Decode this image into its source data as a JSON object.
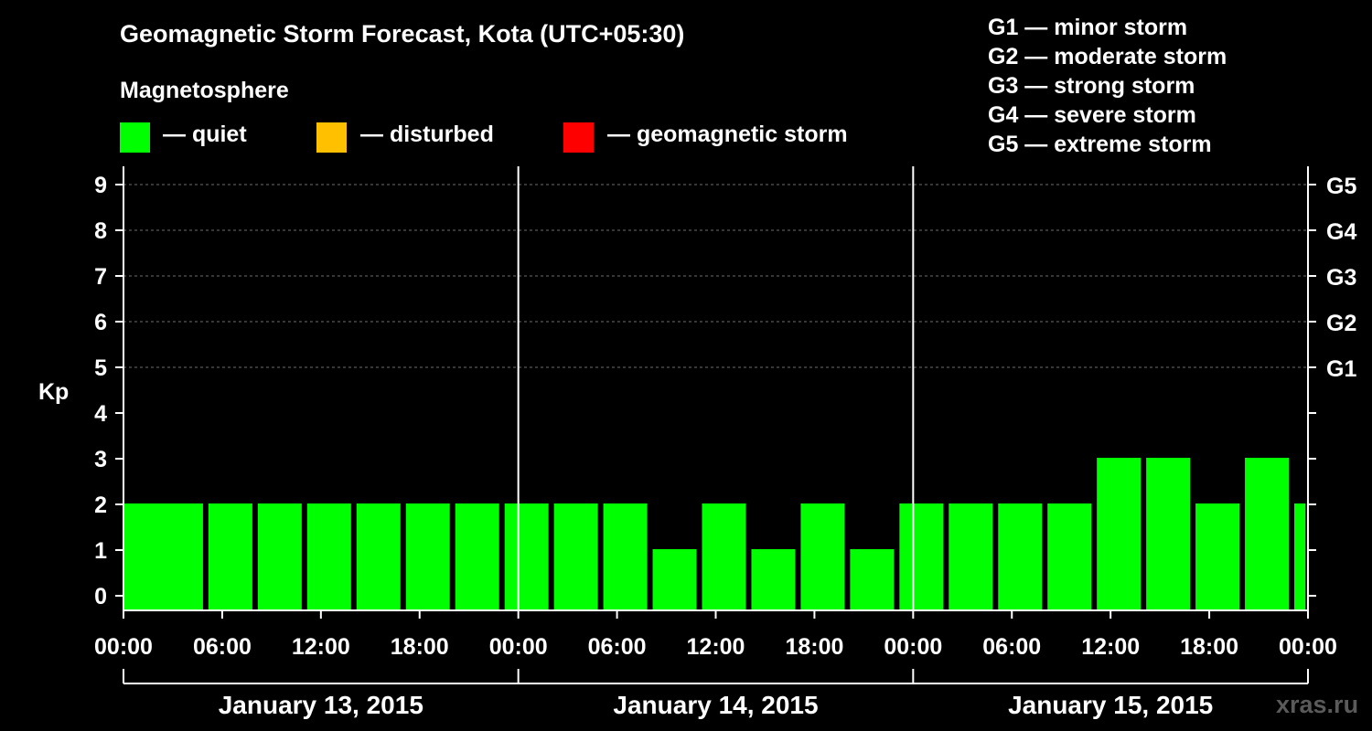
{
  "header": {
    "title": "Geomagnetic Storm Forecast, Kota (UTC+05:30)",
    "subtitle": "Magnetosphere"
  },
  "legend": [
    {
      "label": "— quiet",
      "color": "#00ff00"
    },
    {
      "label": "— disturbed",
      "color": "#ffc000"
    },
    {
      "label": "— geomagnetic storm",
      "color": "#ff0000"
    }
  ],
  "storm_scale": [
    "G1 — minor storm",
    "G2 — moderate storm",
    "G3 — strong storm",
    "G4 — severe storm",
    "G5 — extreme storm"
  ],
  "credit": "xras.ru",
  "chart_data": {
    "type": "bar",
    "ylabel": "Kp",
    "ylim": [
      0,
      9
    ],
    "yticks": [
      0,
      1,
      2,
      3,
      4,
      5,
      6,
      7,
      8,
      9
    ],
    "right_axis_labels": [
      {
        "kp": 5,
        "label": "G1"
      },
      {
        "kp": 6,
        "label": "G2"
      },
      {
        "kp": 7,
        "label": "G3"
      },
      {
        "kp": 8,
        "label": "G4"
      },
      {
        "kp": 9,
        "label": "G5"
      }
    ],
    "grid": "dashed horizontal at Kp 5–9",
    "x_range_hours": [
      0,
      72
    ],
    "xtick_labels": [
      "00:00",
      "06:00",
      "12:00",
      "18:00",
      "00:00",
      "06:00",
      "12:00",
      "18:00",
      "00:00",
      "06:00",
      "12:00",
      "18:00",
      "00:00"
    ],
    "days": [
      "January 13, 2015",
      "January 14, 2015",
      "January 15, 2015"
    ],
    "bars": [
      {
        "start": 0,
        "kp": 2
      },
      {
        "start": 2,
        "kp": 2
      },
      {
        "start": 5,
        "kp": 2
      },
      {
        "start": 8,
        "kp": 2
      },
      {
        "start": 11,
        "kp": 2
      },
      {
        "start": 14,
        "kp": 2
      },
      {
        "start": 17,
        "kp": 2
      },
      {
        "start": 20,
        "kp": 2
      },
      {
        "start": 23,
        "kp": 2
      },
      {
        "start": 26,
        "kp": 2
      },
      {
        "start": 29,
        "kp": 2
      },
      {
        "start": 32,
        "kp": 1
      },
      {
        "start": 35,
        "kp": 2
      },
      {
        "start": 38,
        "kp": 1
      },
      {
        "start": 41,
        "kp": 2
      },
      {
        "start": 44,
        "kp": 1
      },
      {
        "start": 47,
        "kp": 2
      },
      {
        "start": 50,
        "kp": 2
      },
      {
        "start": 53,
        "kp": 2
      },
      {
        "start": 56,
        "kp": 2
      },
      {
        "start": 59,
        "kp": 3
      },
      {
        "start": 62,
        "kp": 3
      },
      {
        "start": 65,
        "kp": 2
      },
      {
        "start": 68,
        "kp": 3
      },
      {
        "start": 71,
        "kp": 2
      }
    ]
  }
}
